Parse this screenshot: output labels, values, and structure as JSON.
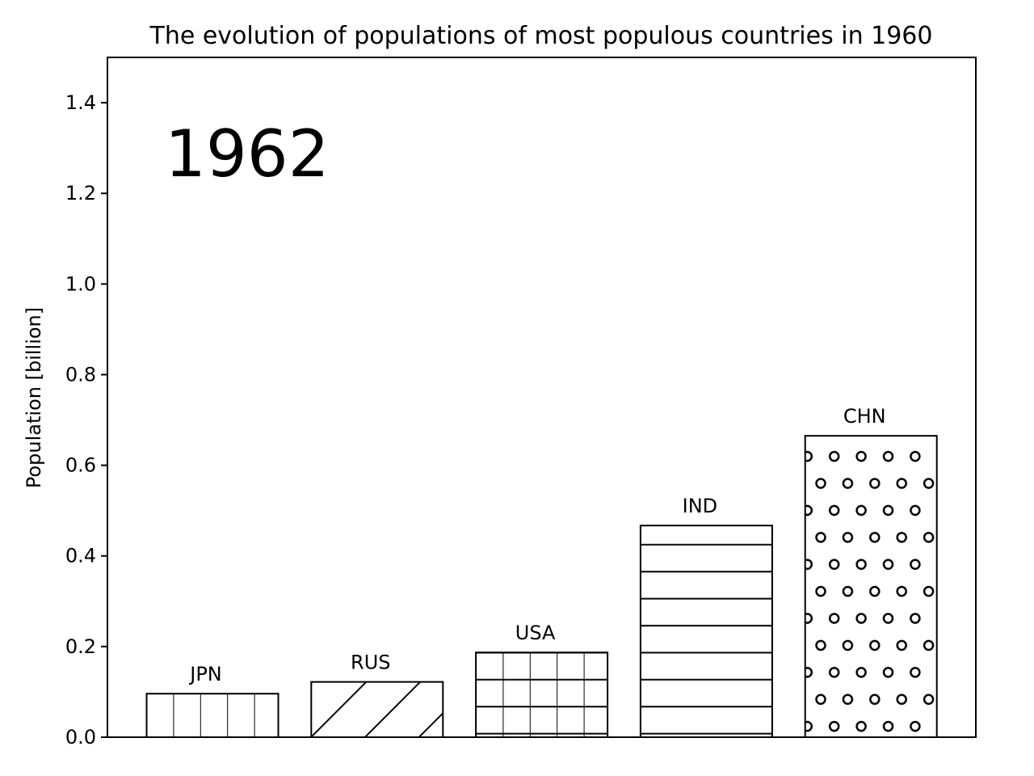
{
  "chart_data": {
    "type": "bar",
    "title": "The evolution of populations of most populous countries in 1960",
    "year_annotation": "1962",
    "xlabel": "",
    "ylabel": "Population [billion]",
    "ylim": [
      0,
      1.5
    ],
    "yticks": [
      0.0,
      0.2,
      0.4,
      0.6,
      0.8,
      1.0,
      1.2,
      1.4
    ],
    "ytick_labels": [
      "0.0",
      "0.2",
      "0.4",
      "0.6",
      "0.8",
      "1.0",
      "1.2",
      "1.4"
    ],
    "grid": false,
    "categories": [
      "JPN",
      "RUS",
      "USA",
      "IND",
      "CHN"
    ],
    "values": [
      0.096,
      0.122,
      0.187,
      0.467,
      0.665
    ],
    "hatches": [
      "vertical",
      "diagonal",
      "grid",
      "horizontal",
      "circles"
    ],
    "colors": {
      "edge": "#000000",
      "fill": "#ffffff"
    }
  }
}
